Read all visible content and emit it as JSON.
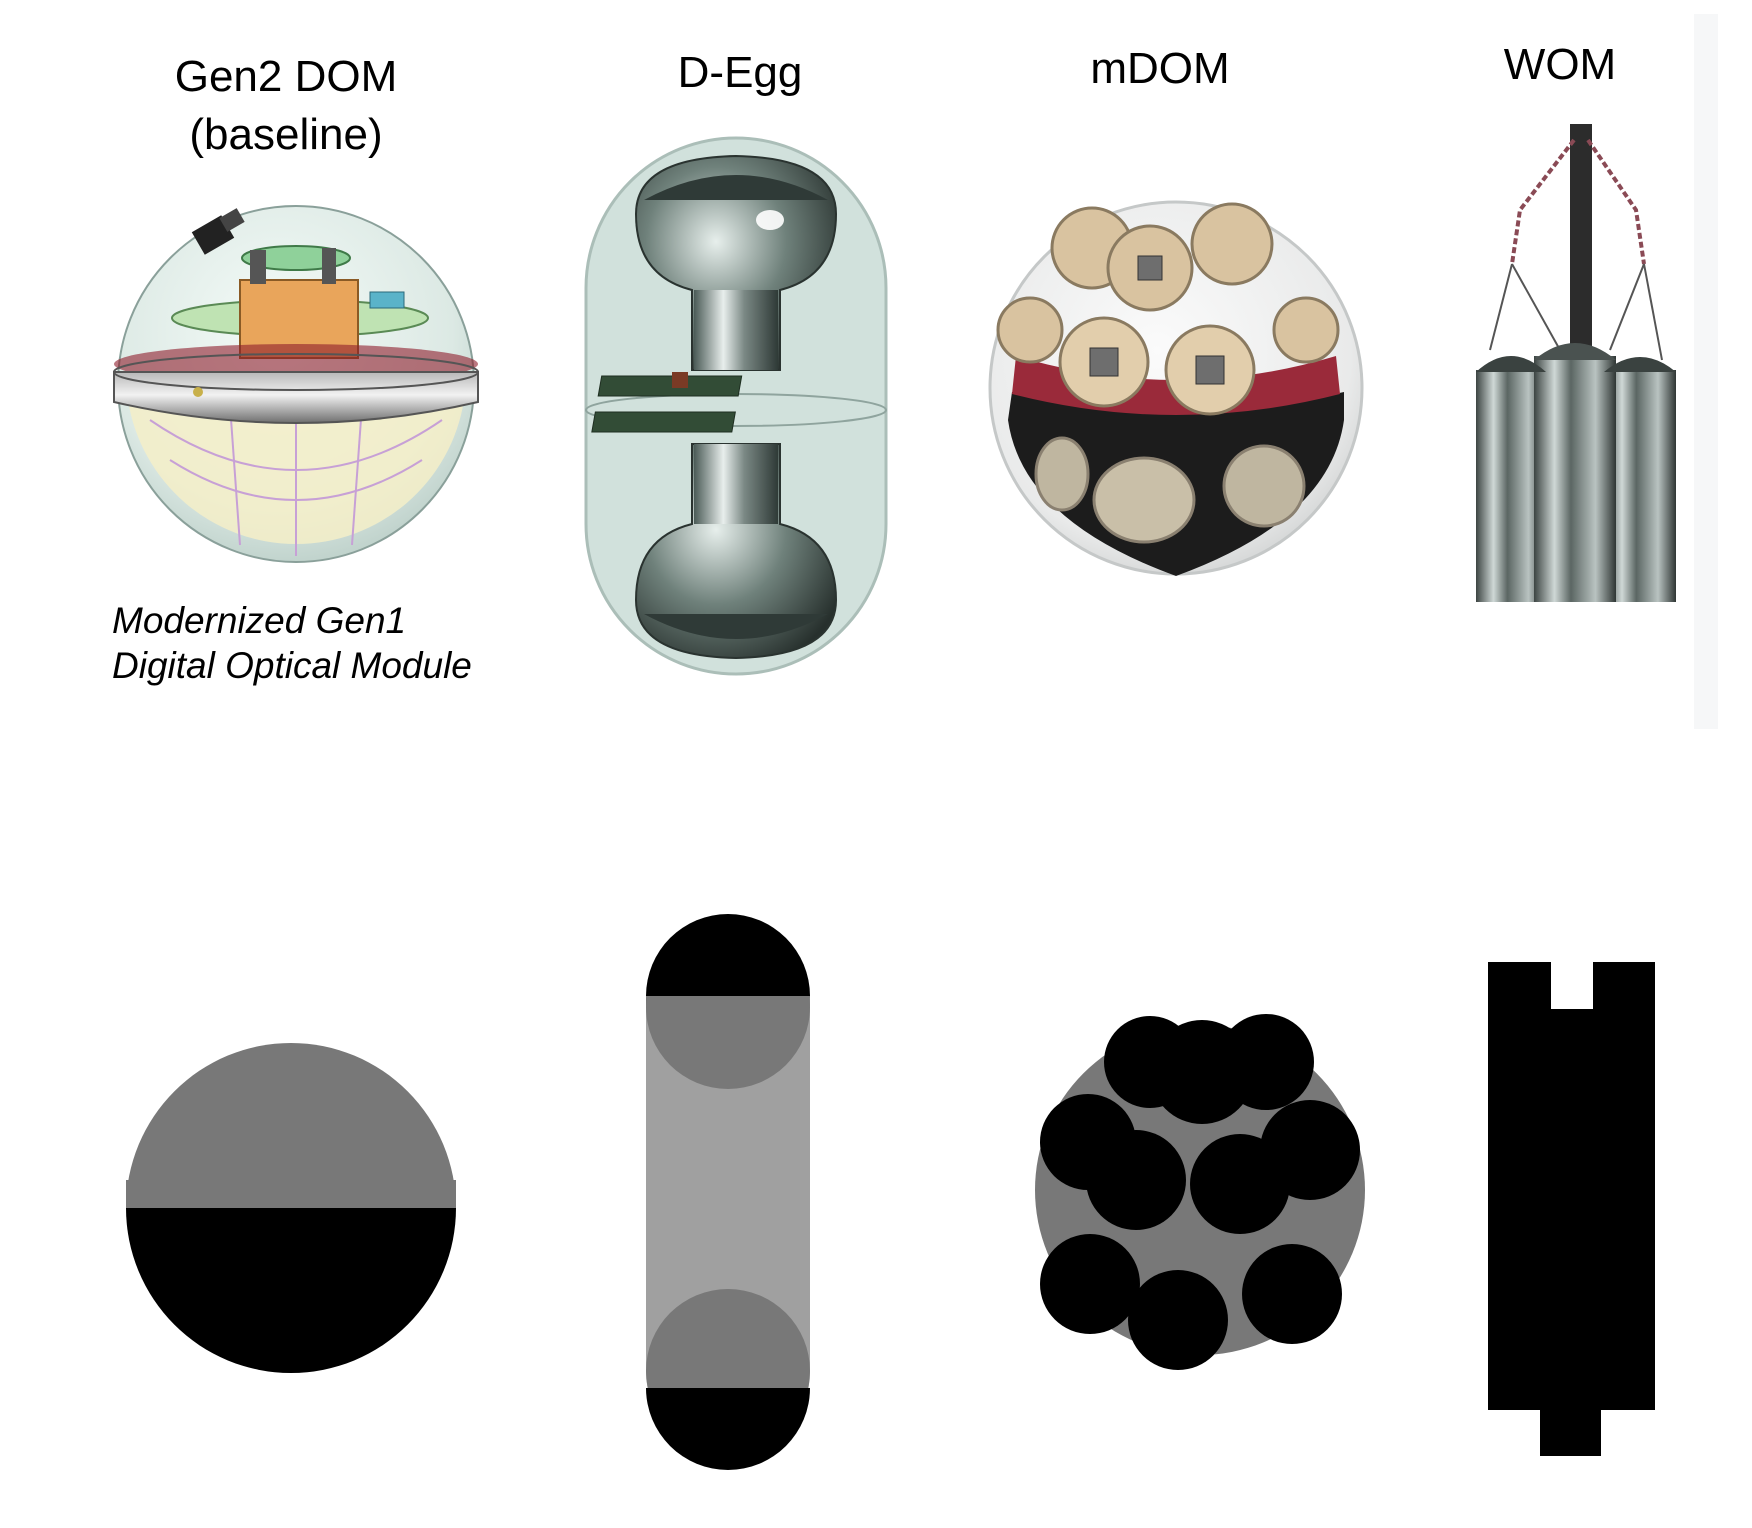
{
  "modules": [
    {
      "id": "gen2-dom",
      "title_lines": [
        "Gen2 DOM",
        "(baseline)"
      ],
      "caption_lines": [
        "Modernized Gen1",
        "Digital Optical Module"
      ],
      "icon": "gen2-dom-render-icon",
      "schematic": "sphere-half-gray-half-black"
    },
    {
      "id": "d-egg",
      "title_lines": [
        "D-Egg"
      ],
      "caption_lines": [],
      "icon": "d-egg-render-icon",
      "schematic": "capsule-two-black-caps"
    },
    {
      "id": "mdom",
      "title_lines": [
        "mDOM"
      ],
      "caption_lines": [],
      "icon": "mdom-render-icon",
      "schematic": "sphere-with-pmt-circles"
    },
    {
      "id": "wom",
      "title_lines": [
        "WOM"
      ],
      "caption_lines": [],
      "icon": "wom-render-icon",
      "schematic": "black-tube-silhouette"
    }
  ],
  "colors": {
    "schematic_black": "#000000",
    "schematic_dark_gray": "#787878",
    "schematic_light_gray": "#a0a0a0",
    "glass_tint": "#c9dcd6",
    "pmt_gold": "#d9c3a0",
    "pcb_red": "#9a2a3a",
    "collar_gray": "#8d8f90",
    "orange_core": "#e9a55b"
  }
}
